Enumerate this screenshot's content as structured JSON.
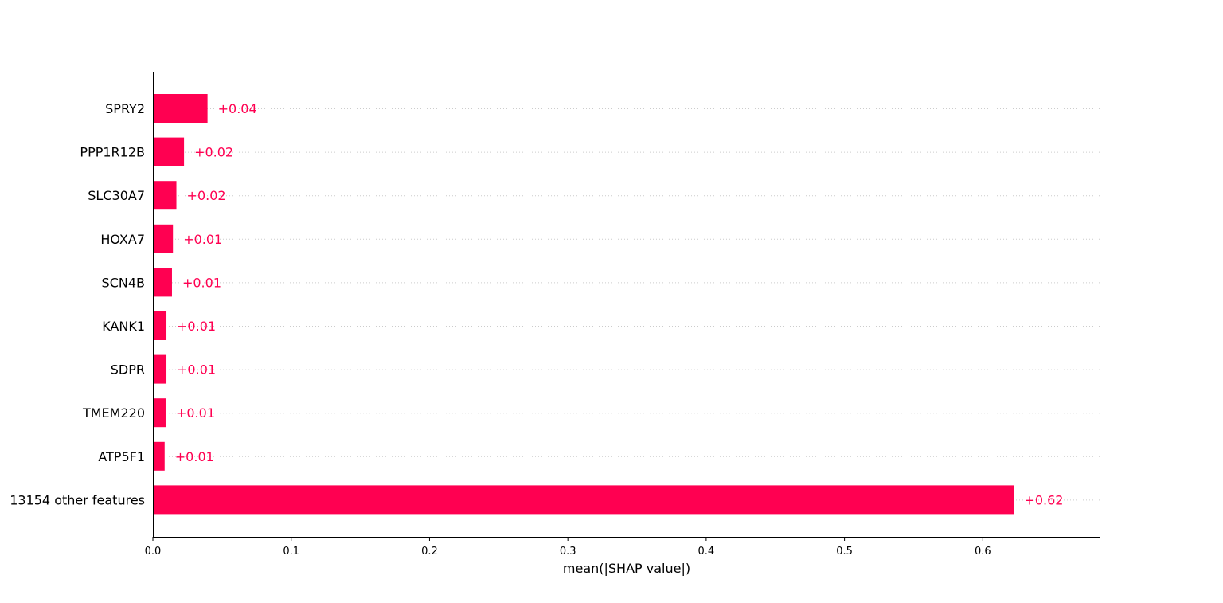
{
  "chart_data": {
    "type": "bar",
    "orientation": "horizontal",
    "categories": [
      "SPRY2",
      "PPP1R12B",
      "SLC30A7",
      "HOXA7",
      "SCN4B",
      "KANK1",
      "SDPR",
      "TMEM220",
      "ATP5F1",
      "13154 other features"
    ],
    "values": [
      0.0395,
      0.0225,
      0.017,
      0.0145,
      0.0138,
      0.0098,
      0.0098,
      0.0092,
      0.0085,
      0.6225
    ],
    "value_labels": [
      "+0.04",
      "+0.02",
      "+0.02",
      "+0.01",
      "+0.01",
      "+0.01",
      "+0.01",
      "+0.01",
      "+0.01",
      "+0.62"
    ],
    "xlabel": "mean(|SHAP value|)",
    "xlim": [
      0,
      0.685
    ],
    "xticks": [
      0.0,
      0.1,
      0.2,
      0.3,
      0.4,
      0.5,
      0.6
    ],
    "xtick_labels": [
      "0.0",
      "0.1",
      "0.2",
      "0.3",
      "0.4",
      "0.5",
      "0.6"
    ],
    "grid": "horizontal dotted",
    "bar_color": "#ff0051",
    "label_color": "#ff0051"
  }
}
